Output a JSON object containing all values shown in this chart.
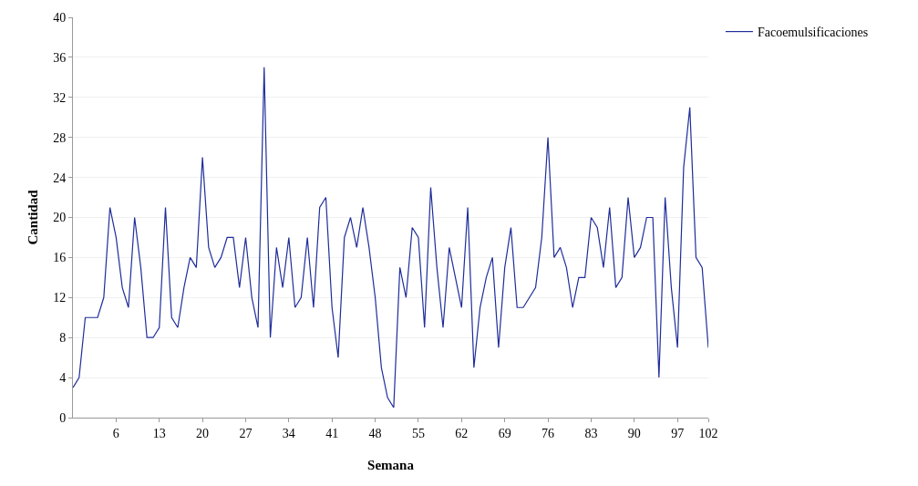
{
  "chart_data": {
    "type": "line",
    "xlabel": "Semana",
    "ylabel": "Cantidad",
    "x": [
      -1,
      0,
      1,
      2,
      3,
      4,
      5,
      6,
      7,
      8,
      9,
      10,
      11,
      12,
      13,
      14,
      15,
      16,
      17,
      18,
      19,
      20,
      21,
      22,
      23,
      24,
      25,
      26,
      27,
      28,
      29,
      30,
      31,
      32,
      33,
      34,
      35,
      36,
      37,
      38,
      39,
      40,
      41,
      42,
      43,
      44,
      45,
      46,
      47,
      48,
      49,
      50,
      51,
      52,
      53,
      54,
      55,
      56,
      57,
      58,
      59,
      60,
      61,
      62,
      63,
      64,
      65,
      66,
      67,
      68,
      69,
      70,
      71,
      72,
      73,
      74,
      75,
      76,
      77,
      78,
      79,
      80,
      81,
      82,
      83,
      84,
      85,
      86,
      87,
      88,
      89,
      90,
      91,
      92,
      93,
      94,
      95,
      96,
      97,
      98,
      99,
      100,
      101,
      102
    ],
    "series": [
      {
        "name": "Facoemulsificaciones",
        "color": "#1f2d9a",
        "values": [
          3,
          4,
          10,
          10,
          10,
          12,
          21,
          18,
          13,
          11,
          20,
          15,
          8,
          8,
          9,
          21,
          10,
          9,
          13,
          16,
          15,
          26,
          17,
          15,
          16,
          18,
          18,
          13,
          18,
          12,
          9,
          35,
          8,
          17,
          13,
          18,
          11,
          12,
          18,
          11,
          21,
          22,
          11,
          6,
          18,
          20,
          17,
          21,
          17,
          12,
          5,
          2,
          1,
          15,
          12,
          19,
          18,
          9,
          23,
          15,
          9,
          17,
          14,
          11,
          21,
          5,
          11,
          14,
          16,
          7,
          15,
          19,
          11,
          11,
          12,
          13,
          18,
          28,
          16,
          17,
          15,
          11,
          14,
          14,
          20,
          19,
          15,
          21,
          13,
          14,
          22,
          16,
          17,
          20,
          20,
          4,
          22,
          13,
          7,
          25,
          31,
          16,
          15,
          7
        ]
      }
    ],
    "xlim": [
      -1,
      102
    ],
    "xticks": [
      6,
      13,
      20,
      27,
      34,
      41,
      48,
      55,
      62,
      69,
      76,
      83,
      90,
      97,
      102
    ],
    "ylim": [
      0,
      40
    ],
    "yticks": [
      0,
      4,
      8,
      12,
      16,
      20,
      24,
      28,
      32,
      36,
      40
    ],
    "grid": "y",
    "legend": "top right",
    "marker": "none",
    "line_style": "solid"
  }
}
